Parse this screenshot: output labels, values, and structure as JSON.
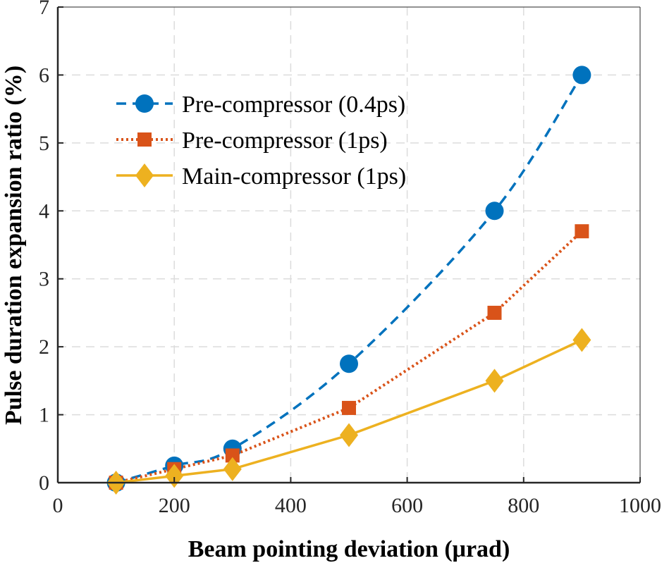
{
  "chart_data": {
    "type": "line",
    "title": "",
    "xlabel": "Beam pointing deviation (μrad)",
    "ylabel": "Pulse duration expansion ratio (%)",
    "xlim": [
      0,
      1000
    ],
    "ylim": [
      0,
      7
    ],
    "xticks": [
      0,
      200,
      400,
      600,
      800,
      1000
    ],
    "yticks": [
      0,
      1,
      2,
      3,
      4,
      5,
      6,
      7
    ],
    "grid": true,
    "legend_position": "top-left",
    "x": [
      100,
      200,
      300,
      500,
      750,
      900
    ],
    "series": [
      {
        "name": "Pre-compressor (0.4ps)",
        "values": [
          0,
          0.25,
          0.5,
          1.75,
          4.0,
          6.0
        ],
        "color": "#0072BD",
        "line": "dashed",
        "marker": "circle"
      },
      {
        "name": "Pre-compressor (1ps)",
        "values": [
          0,
          0.2,
          0.4,
          1.1,
          2.5,
          3.7
        ],
        "color": "#D95319",
        "line": "dotted",
        "marker": "square"
      },
      {
        "name": "Main-compressor (1ps)",
        "values": [
          0,
          0.1,
          0.2,
          0.7,
          1.5,
          2.1
        ],
        "color": "#EDB120",
        "line": "solid",
        "marker": "diamond"
      }
    ]
  }
}
